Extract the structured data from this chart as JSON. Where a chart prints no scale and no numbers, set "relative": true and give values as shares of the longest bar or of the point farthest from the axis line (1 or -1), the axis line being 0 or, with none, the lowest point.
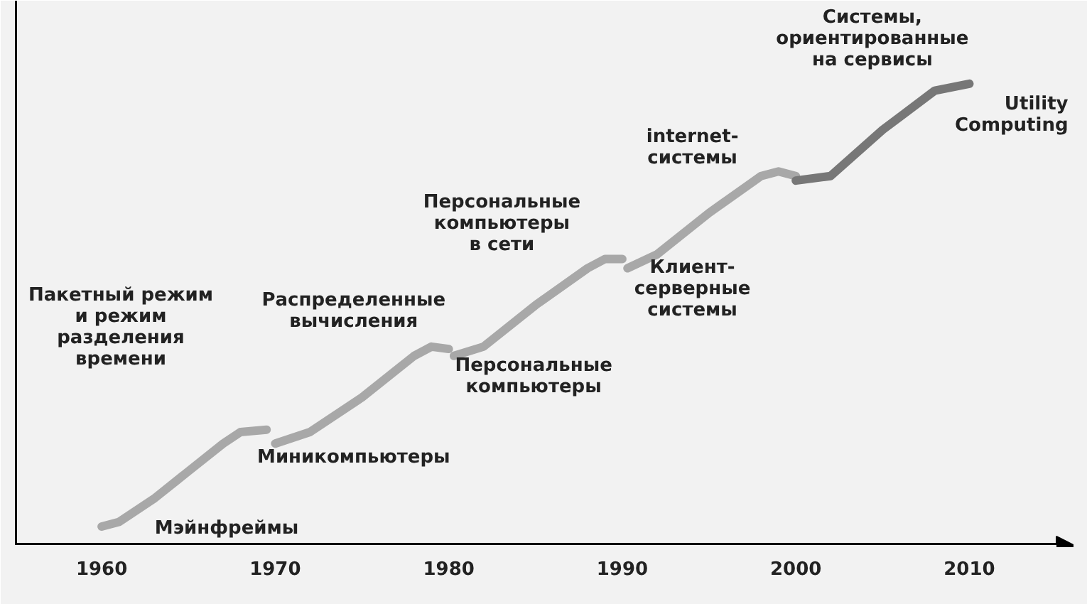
{
  "chart_data": {
    "type": "line",
    "relative": true,
    "xlim": [
      1955,
      2016
    ],
    "xticks": [
      1960,
      1970,
      1980,
      1990,
      2000,
      2010
    ],
    "grid": false,
    "line_style": "solid",
    "marker": "none",
    "series": [
      {
        "color": "#a8a8a8",
        "x": [
          1960,
          1961,
          1963,
          1965,
          1967,
          1968,
          1969.5
        ],
        "values": [
          0.04,
          0.05,
          0.1,
          0.16,
          0.22,
          0.245,
          0.25
        ]
      },
      {
        "color": "#a8a8a8",
        "x": [
          1970,
          1972,
          1975,
          1978,
          1979,
          1980
        ],
        "values": [
          0.22,
          0.245,
          0.32,
          0.41,
          0.43,
          0.425
        ]
      },
      {
        "color": "#a8a8a8",
        "x": [
          1980.3,
          1982,
          1985,
          1988,
          1989,
          1990
        ],
        "values": [
          0.41,
          0.43,
          0.52,
          0.6,
          0.62,
          0.62
        ]
      },
      {
        "color": "#a8a8a8",
        "x": [
          1990.3,
          1992,
          1995,
          1998,
          1999,
          2000
        ],
        "values": [
          0.6,
          0.63,
          0.72,
          0.8,
          0.81,
          0.8
        ]
      },
      {
        "color": "#777777",
        "x": [
          2000,
          2002,
          2005,
          2008,
          2010
        ],
        "values": [
          0.79,
          0.8,
          0.9,
          0.985,
          1
        ]
      }
    ],
    "annotations": [
      "Мэйнфреймы",
      "Пакетный режим\nи режим\nразделения\nвремени",
      "Миникомпьютеры",
      "Распределенные\nвычисления",
      "Персональные\nкомпьютеры",
      "Персональные\nкомпьютеры\nв сети",
      "Клиент-\nсерверные\nсистемы",
      "internet-\nсистемы",
      "Системы,\nориентированные\nна сервисы",
      "Utility\nComputing"
    ]
  }
}
